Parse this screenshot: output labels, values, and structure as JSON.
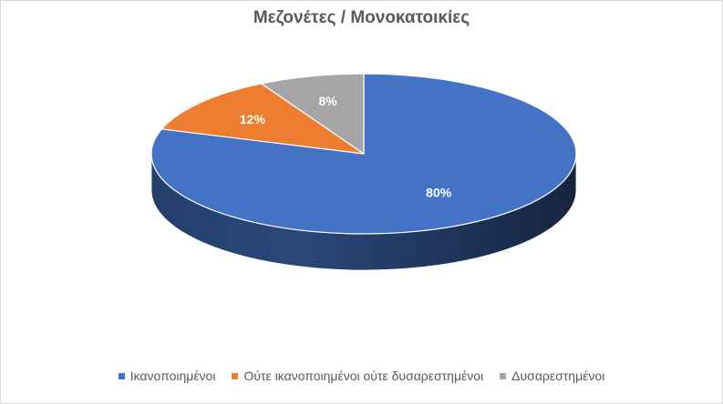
{
  "chart_data": {
    "type": "pie",
    "title": "Μεζονέτες / Μονοκατοικίες",
    "legend_position": "bottom",
    "start_angle": "top",
    "direction": "clockwise",
    "style": "3d",
    "slices": [
      {
        "label": "Ικανοποιημένοι",
        "value": 80,
        "data_label": "80%",
        "color": "#4472C4"
      },
      {
        "label": "Ούτε ικανοποιημένοι ούτε δυσαρεστημένοι",
        "value": 12,
        "data_label": "12%",
        "color": "#ED7D31"
      },
      {
        "label": "Δυσαρεστημένοι",
        "value": 8,
        "data_label": "8%",
        "color": "#A5A5A5"
      }
    ]
  }
}
